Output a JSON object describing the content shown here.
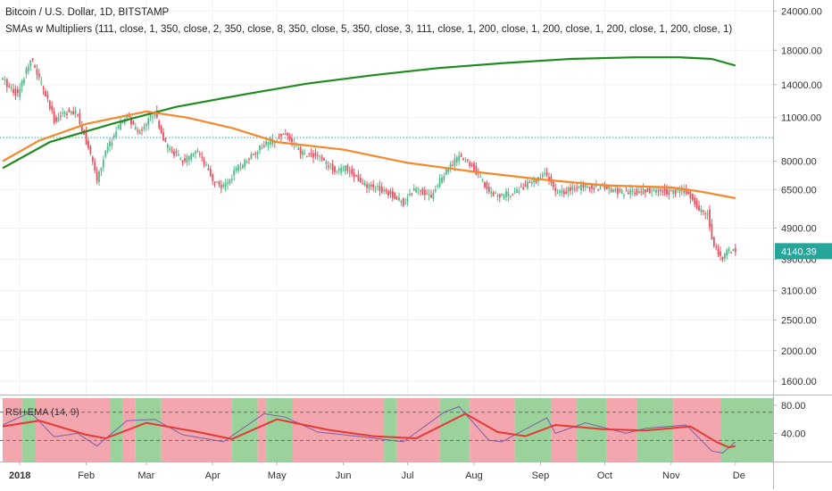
{
  "header": {
    "symbol": "Bitcoin / U.S. Dollar, 1D, BITSTAMP",
    "indicator": "SMAs w Multipliers (111, close, 1, 350, close, 2, 350, close, 8, 350, close, 5, 350, close, 3, 111, close, 1, 200, close, 1, 200, close, 1, 200, close, 1, 200, close, 1)"
  },
  "price_label": "4140.39",
  "colors": {
    "up": "#53b987",
    "down": "#eb4d5c",
    "sma_green": "#1e8b1e",
    "sma_orange": "#f5882a",
    "dotted_line": "#26a69a",
    "price_box": "#26a69a",
    "rsi_line": "#7b5ea7",
    "ema_line": "#e53935",
    "rsi_band_green": "#9bd19b",
    "rsi_band_red": "#f4a6ae"
  },
  "chart_data": [
    {
      "type": "candlestick",
      "scale": "log",
      "ylim": [
        1450,
        26000
      ],
      "y_ticks": [
        24000,
        18000,
        14000,
        11000,
        8000,
        6500,
        4900,
        3900,
        3100,
        2500,
        2000,
        1600
      ],
      "y_tick_labels": [
        "24000.00",
        "18000.00",
        "14000.00",
        "11000.00",
        "8000.00",
        "6500.00",
        "4900.00",
        "3900.00",
        "3100.00",
        "2500.00",
        "2000.00",
        "1600.00"
      ],
      "x_labels": [
        "2018",
        "Feb",
        "Mar",
        "Apr",
        "May",
        "Jun",
        "Jul",
        "Aug",
        "Sep",
        "Oct",
        "Nov",
        "De"
      ],
      "horizontal_line": 9500,
      "last_price": 4140.39,
      "price_path": [
        [
          "2017-12-24",
          14500
        ],
        [
          "2017-12-31",
          13000
        ],
        [
          "2018-01-06",
          17100
        ],
        [
          "2018-01-12",
          13500
        ],
        [
          "2018-01-17",
          10800
        ],
        [
          "2018-01-22",
          11500
        ],
        [
          "2018-01-28",
          11200
        ],
        [
          "2018-02-02",
          8800
        ],
        [
          "2018-02-06",
          7000
        ],
        [
          "2018-02-10",
          8500
        ],
        [
          "2018-02-15",
          10000
        ],
        [
          "2018-02-20",
          11200
        ],
        [
          "2018-02-25",
          9800
        ],
        [
          "2018-03-05",
          11500
        ],
        [
          "2018-03-10",
          9000
        ],
        [
          "2018-03-18",
          8000
        ],
        [
          "2018-03-25",
          8500
        ],
        [
          "2018-04-01",
          7000
        ],
        [
          "2018-04-06",
          6600
        ],
        [
          "2018-04-12",
          7500
        ],
        [
          "2018-04-20",
          8500
        ],
        [
          "2018-04-25",
          9000
        ],
        [
          "2018-05-05",
          9800
        ],
        [
          "2018-05-12",
          8500
        ],
        [
          "2018-05-20",
          8300
        ],
        [
          "2018-05-28",
          7500
        ],
        [
          "2018-06-03",
          7600
        ],
        [
          "2018-06-10",
          6700
        ],
        [
          "2018-06-20",
          6500
        ],
        [
          "2018-06-29",
          5900
        ],
        [
          "2018-07-05",
          6600
        ],
        [
          "2018-07-12",
          6200
        ],
        [
          "2018-07-18",
          7300
        ],
        [
          "2018-07-25",
          8300
        ],
        [
          "2018-08-01",
          7600
        ],
        [
          "2018-08-08",
          6400
        ],
        [
          "2018-08-14",
          6200
        ],
        [
          "2018-08-22",
          6500
        ],
        [
          "2018-08-30",
          7000
        ],
        [
          "2018-09-04",
          7300
        ],
        [
          "2018-09-08",
          6300
        ],
        [
          "2018-09-15",
          6500
        ],
        [
          "2018-09-22",
          6700
        ],
        [
          "2018-10-01",
          6600
        ],
        [
          "2018-10-11",
          6300
        ],
        [
          "2018-10-20",
          6450
        ],
        [
          "2018-11-01",
          6400
        ],
        [
          "2018-11-08",
          6450
        ],
        [
          "2018-11-14",
          5600
        ],
        [
          "2018-11-18",
          5500
        ],
        [
          "2018-11-20",
          4500
        ],
        [
          "2018-11-25",
          3900
        ],
        [
          "2018-11-28",
          4200
        ],
        [
          "2018-12-01",
          4140
        ]
      ],
      "series": [
        {
          "name": "",
          "color": "green",
          "points": [
            [
              "2017-12-24",
              7600
            ],
            [
              "2018-01-15",
              9200
            ],
            [
              "2018-02-15",
              10600
            ],
            [
              "2018-03-15",
              11900
            ],
            [
              "2018-04-15",
              13000
            ],
            [
              "2018-05-15",
              14100
            ],
            [
              "2018-06-15",
              15000
            ],
            [
              "2018-07-15",
              15800
            ],
            [
              "2018-08-15",
              16400
            ],
            [
              "2018-09-15",
              16900
            ],
            [
              "2018-10-15",
              17100
            ],
            [
              "2018-11-05",
              17100
            ],
            [
              "2018-11-20",
              16900
            ],
            [
              "2018-12-01",
              16100
            ]
          ]
        },
        {
          "name": "",
          "color": "orange",
          "points": [
            [
              "2017-12-24",
              8000
            ],
            [
              "2018-01-10",
              9300
            ],
            [
              "2018-02-01",
              10500
            ],
            [
              "2018-03-01",
              11500
            ],
            [
              "2018-03-20",
              11000
            ],
            [
              "2018-04-10",
              10200
            ],
            [
              "2018-05-01",
              9200
            ],
            [
              "2018-06-01",
              8700
            ],
            [
              "2018-07-01",
              7900
            ],
            [
              "2018-08-01",
              7400
            ],
            [
              "2018-09-01",
              7000
            ],
            [
              "2018-10-01",
              6700
            ],
            [
              "2018-11-01",
              6600
            ],
            [
              "2018-11-15",
              6400
            ],
            [
              "2018-12-01",
              6100
            ]
          ]
        }
      ]
    },
    {
      "type": "line",
      "panel": "oscillator",
      "legend": "RSI+EMA (14, 9)",
      "ylim": [
        0,
        90
      ],
      "y_ticks": [
        80,
        40
      ],
      "y_tick_labels": [
        "80.00",
        "40.00"
      ],
      "levels": [
        70,
        30
      ],
      "rsi": [
        [
          "2017-12-24",
          52
        ],
        [
          "2018-01-06",
          70
        ],
        [
          "2018-01-17",
          35
        ],
        [
          "2018-01-28",
          40
        ],
        [
          "2018-02-06",
          22
        ],
        [
          "2018-02-20",
          58
        ],
        [
          "2018-03-05",
          60
        ],
        [
          "2018-03-18",
          38
        ],
        [
          "2018-04-06",
          28
        ],
        [
          "2018-04-25",
          68
        ],
        [
          "2018-05-05",
          63
        ],
        [
          "2018-05-20",
          42
        ],
        [
          "2018-06-10",
          35
        ],
        [
          "2018-06-29",
          28
        ],
        [
          "2018-07-18",
          70
        ],
        [
          "2018-07-25",
          78
        ],
        [
          "2018-08-08",
          30
        ],
        [
          "2018-08-14",
          28
        ],
        [
          "2018-09-04",
          62
        ],
        [
          "2018-09-08",
          40
        ],
        [
          "2018-09-22",
          55
        ],
        [
          "2018-10-11",
          40
        ],
        [
          "2018-10-20",
          47
        ],
        [
          "2018-11-08",
          52
        ],
        [
          "2018-11-20",
          15
        ],
        [
          "2018-11-25",
          12
        ],
        [
          "2018-12-01",
          28
        ]
      ],
      "ema": [
        [
          "2017-12-24",
          50
        ],
        [
          "2018-01-10",
          58
        ],
        [
          "2018-02-01",
          38
        ],
        [
          "2018-02-10",
          33
        ],
        [
          "2018-03-01",
          55
        ],
        [
          "2018-03-25",
          42
        ],
        [
          "2018-04-10",
          32
        ],
        [
          "2018-05-01",
          60
        ],
        [
          "2018-05-25",
          45
        ],
        [
          "2018-06-15",
          36
        ],
        [
          "2018-07-05",
          33
        ],
        [
          "2018-07-28",
          68
        ],
        [
          "2018-08-12",
          42
        ],
        [
          "2018-08-25",
          36
        ],
        [
          "2018-09-08",
          52
        ],
        [
          "2018-09-30",
          46
        ],
        [
          "2018-10-20",
          44
        ],
        [
          "2018-11-10",
          50
        ],
        [
          "2018-11-22",
          28
        ],
        [
          "2018-11-28",
          20
        ],
        [
          "2018-12-01",
          22
        ]
      ],
      "bands": [
        [
          "2017-12-24",
          "red"
        ],
        [
          "2018-01-02",
          "green"
        ],
        [
          "2018-01-08",
          "red"
        ],
        [
          "2018-02-12",
          "green"
        ],
        [
          "2018-02-18",
          "red"
        ],
        [
          "2018-02-24",
          "green"
        ],
        [
          "2018-03-08",
          "red"
        ],
        [
          "2018-04-10",
          "green"
        ],
        [
          "2018-04-22",
          "red"
        ],
        [
          "2018-04-26",
          "green"
        ],
        [
          "2018-05-08",
          "red"
        ],
        [
          "2018-06-20",
          "green"
        ],
        [
          "2018-06-26",
          "red"
        ],
        [
          "2018-07-16",
          "green"
        ],
        [
          "2018-07-30",
          "red"
        ],
        [
          "2018-08-20",
          "green"
        ],
        [
          "2018-09-06",
          "red"
        ],
        [
          "2018-09-18",
          "green"
        ],
        [
          "2018-10-02",
          "red"
        ],
        [
          "2018-10-16",
          "green"
        ],
        [
          "2018-11-02",
          "red"
        ],
        [
          "2018-11-24",
          "green"
        ]
      ]
    }
  ]
}
